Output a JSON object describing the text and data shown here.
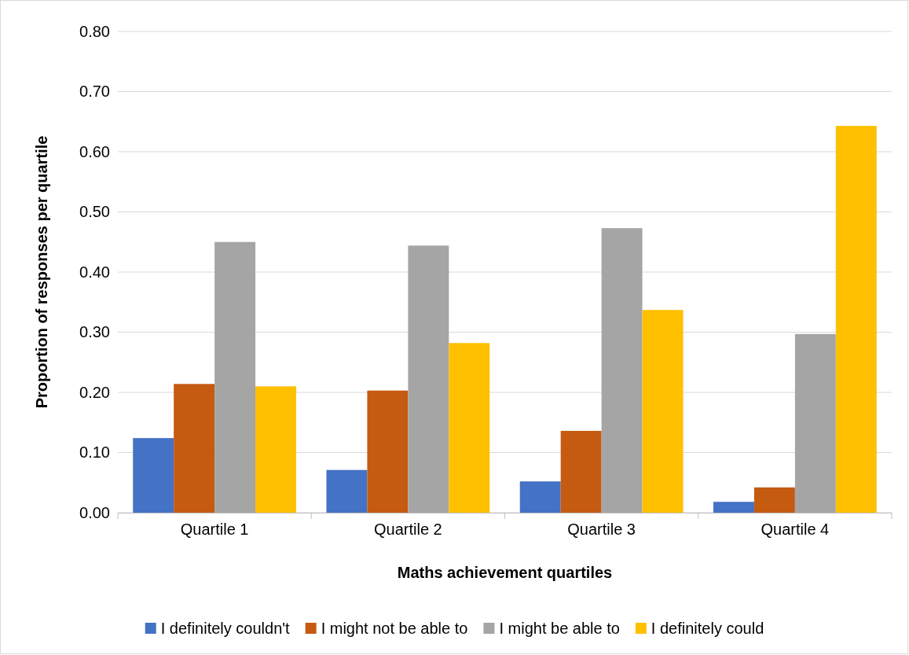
{
  "chart_data": {
    "type": "bar",
    "xlabel": "Maths achievement quartiles",
    "ylabel": "Proportion of responses per quartile",
    "categories": [
      "Quartile 1",
      "Quartile 2",
      "Quartile 3",
      "Quartile 4"
    ],
    "series": [
      {
        "name": "I definitely couldn't",
        "color": "#4472c4",
        "values": [
          0.124,
          0.071,
          0.052,
          0.018
        ]
      },
      {
        "name": "I might not be able to",
        "color": "#c55a11",
        "values": [
          0.214,
          0.203,
          0.136,
          0.042
        ]
      },
      {
        "name": "I might be able to",
        "color": "#a5a5a5",
        "values": [
          0.45,
          0.444,
          0.473,
          0.297
        ]
      },
      {
        "name": "I definitely could",
        "color": "#ffc000",
        "values": [
          0.21,
          0.282,
          0.337,
          0.643
        ]
      }
    ],
    "ylim": [
      0,
      0.8
    ],
    "yticks": [
      {
        "value": 0,
        "label": "0.00"
      },
      {
        "value": 0.1,
        "label": "0.10"
      },
      {
        "value": 0.2,
        "label": "0.20"
      },
      {
        "value": 0.3,
        "label": "0.30"
      },
      {
        "value": 0.4,
        "label": "0.40"
      },
      {
        "value": 0.5,
        "label": "0.50"
      },
      {
        "value": 0.6,
        "label": "0.60"
      },
      {
        "value": 0.7,
        "label": "0.70"
      },
      {
        "value": 0.8,
        "label": "0.80"
      }
    ],
    "grid": "y",
    "legend": "bottom"
  }
}
